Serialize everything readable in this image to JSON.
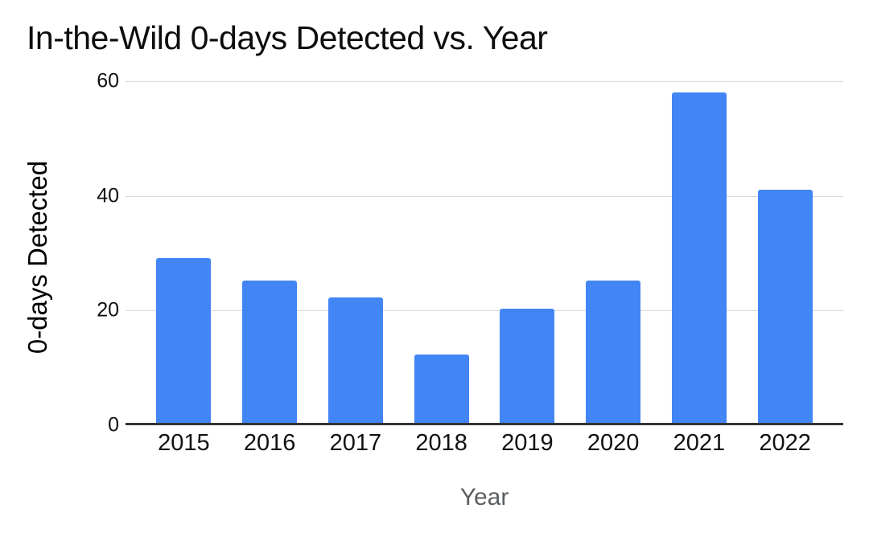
{
  "chart_data": {
    "type": "bar",
    "title": "In-the-Wild 0-days Detected vs. Year",
    "xlabel": "Year",
    "ylabel": "0-days Detected",
    "categories": [
      "2015",
      "2016",
      "2017",
      "2018",
      "2019",
      "2020",
      "2021",
      "2022"
    ],
    "values": [
      29,
      25,
      22,
      12,
      20,
      25,
      58,
      41
    ],
    "ylim": [
      0,
      60
    ],
    "yticks": [
      0,
      20,
      40,
      60
    ],
    "grid": "horizontal",
    "legend_position": "none",
    "bar_color": "#4285F4",
    "gridline_color": "#d9d9d9",
    "axis_line_color": "#333333",
    "title_color": "#0d0d0d",
    "xlabel_color": "#5b5e61",
    "tick_label_color": "#111111",
    "background_color": "#ffffff"
  }
}
